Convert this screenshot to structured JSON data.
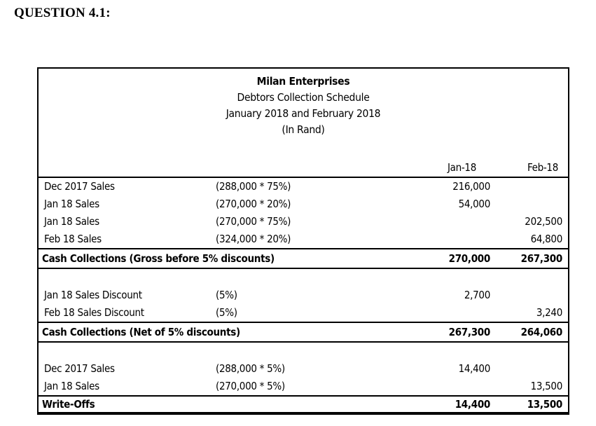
{
  "page": {
    "heading": "QUESTION 4.1:"
  },
  "schedule": {
    "title_lines": [
      "Milan Enterprises",
      "Debtors Collection Schedule",
      "January 2018 and February 2018",
      "(In Rand)"
    ],
    "columns": {
      "month1": "Jan-18",
      "month2": "Feb-18"
    },
    "rows": [
      {
        "type": "data",
        "label": "Dec 2017 Sales",
        "formula": "(288,000 * 75%)",
        "jan": "216,000",
        "feb": ""
      },
      {
        "type": "data",
        "label": "Jan 18 Sales",
        "formula": "(270,000 * 20%)",
        "jan": "54,000",
        "feb": ""
      },
      {
        "type": "data",
        "label": "Jan 18 Sales",
        "formula": "(270,000 * 75%)",
        "jan": "",
        "feb": "202,500"
      },
      {
        "type": "data",
        "label": "Feb 18 Sales",
        "formula": "(324,000 * 20%)",
        "jan": "",
        "feb": "64,800"
      },
      {
        "type": "total",
        "label": "Cash Collections (Gross before 5% discounts)",
        "formula": "",
        "jan": "270,000",
        "feb": "267,300"
      },
      {
        "type": "blank",
        "label": "",
        "formula": "",
        "jan": "",
        "feb": ""
      },
      {
        "type": "data",
        "label": "Jan 18 Sales Discount",
        "formula": "(5%)",
        "jan": "2,700",
        "feb": ""
      },
      {
        "type": "data",
        "label": "Feb 18 Sales Discount",
        "formula": "(5%)",
        "jan": "",
        "feb": "3,240"
      },
      {
        "type": "total",
        "label": "Cash Collections (Net of 5% discounts)",
        "formula": "",
        "jan": "267,300",
        "feb": "264,060"
      },
      {
        "type": "blank",
        "label": "",
        "formula": "",
        "jan": "",
        "feb": ""
      },
      {
        "type": "data",
        "label": "Dec 2017 Sales",
        "formula": "(288,000 * 5%)",
        "jan": "14,400",
        "feb": ""
      },
      {
        "type": "data",
        "label": "Jan 18 Sales",
        "formula": "(270,000 * 5%)",
        "jan": "",
        "feb": "13,500"
      },
      {
        "type": "grand",
        "label": "Write-Offs",
        "formula": "",
        "jan": "14,400",
        "feb": "13,500"
      }
    ],
    "colors": {
      "text": "#000000",
      "border": "#000000",
      "background": "#ffffff"
    }
  }
}
